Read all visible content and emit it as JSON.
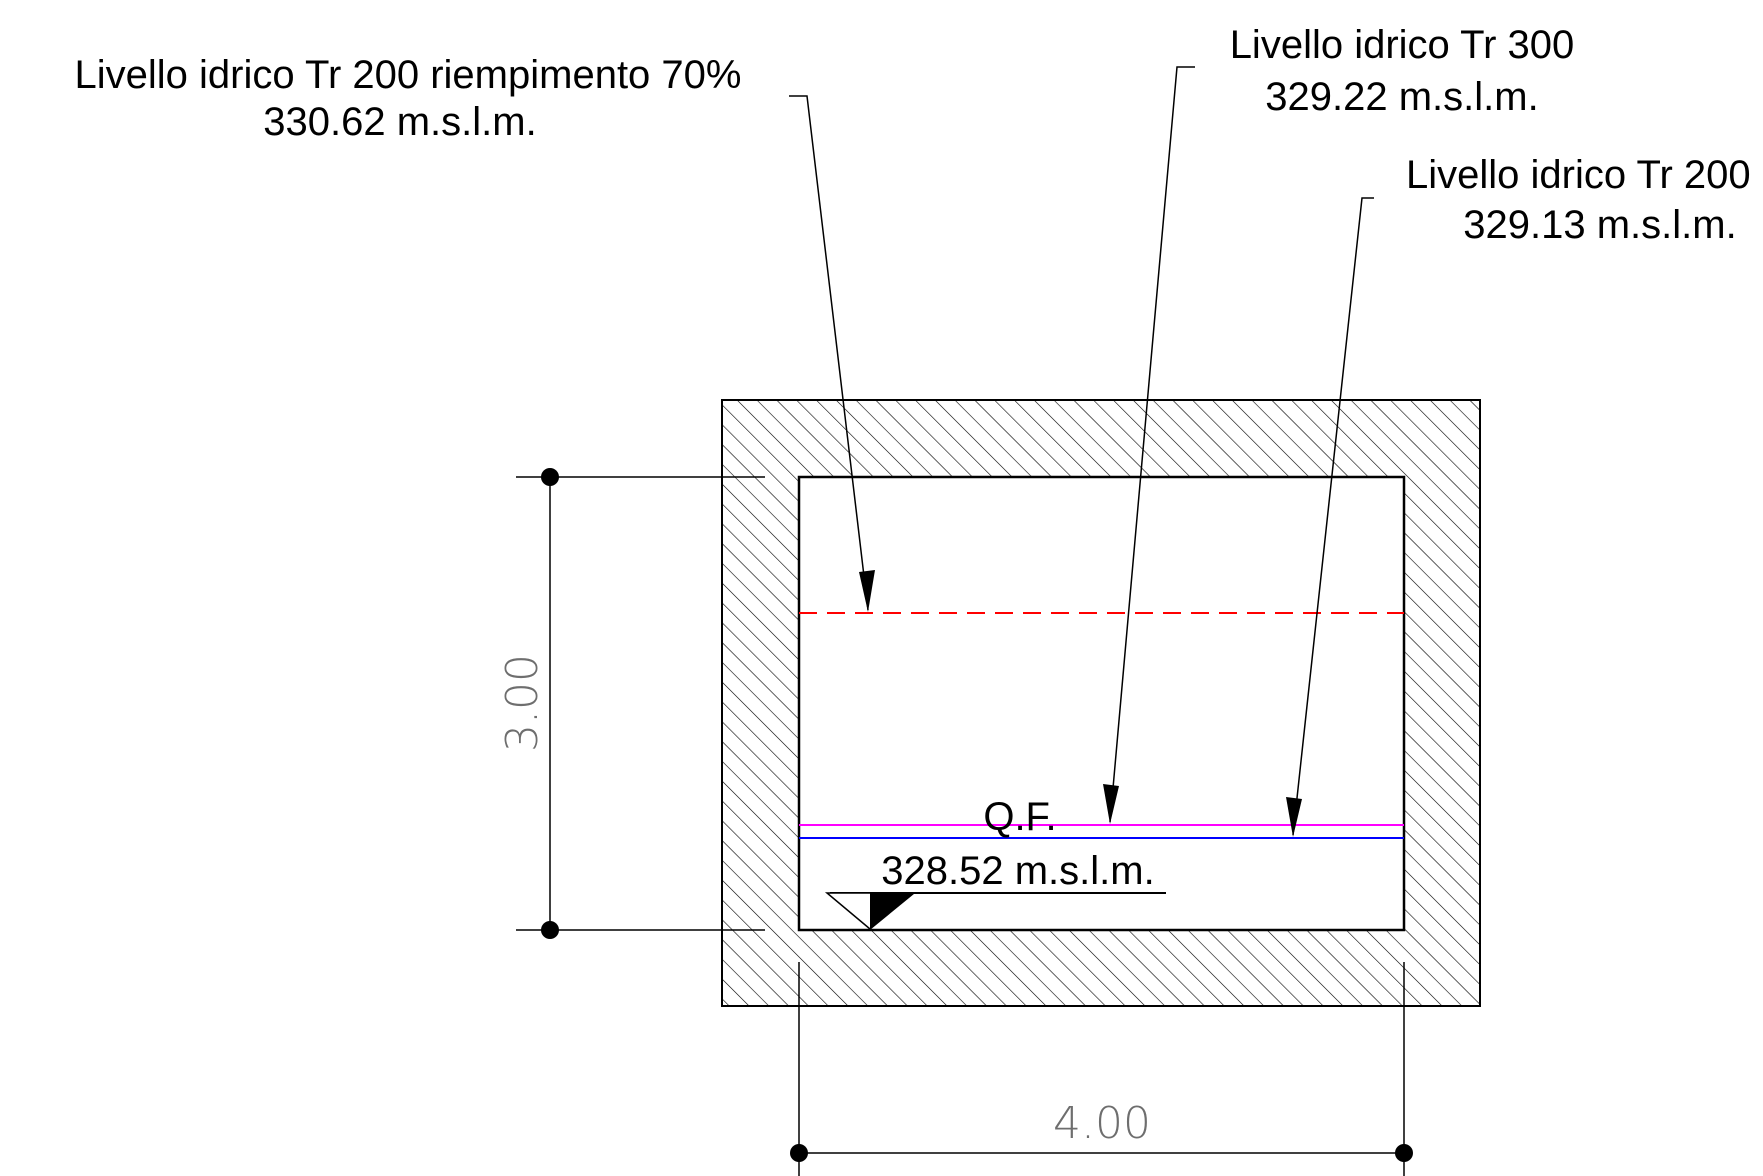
{
  "annotations": {
    "tr200_fill70": {
      "title": "Livello idrico Tr 200 riempimento 70%",
      "value": "330.62 m.s.l.m."
    },
    "tr300": {
      "title": "Livello idrico Tr 300",
      "value": "329.22 m.s.l.m."
    },
    "tr200": {
      "title": "Livello idrico Tr 200",
      "value": "329.13 m.s.l.m."
    },
    "bottom": {
      "title": "Q.F.",
      "value": "328.52 m.s.l.m."
    }
  },
  "dimensions": {
    "height": "3.00",
    "width": "4.00"
  },
  "colors": {
    "level_tr200_fill70": "#ff0000",
    "level_tr300": "#ff00ff",
    "level_tr200": "#0000ff",
    "outline": "#000000",
    "hatch": "#000000",
    "dimension_text": "#6e6e6e"
  }
}
